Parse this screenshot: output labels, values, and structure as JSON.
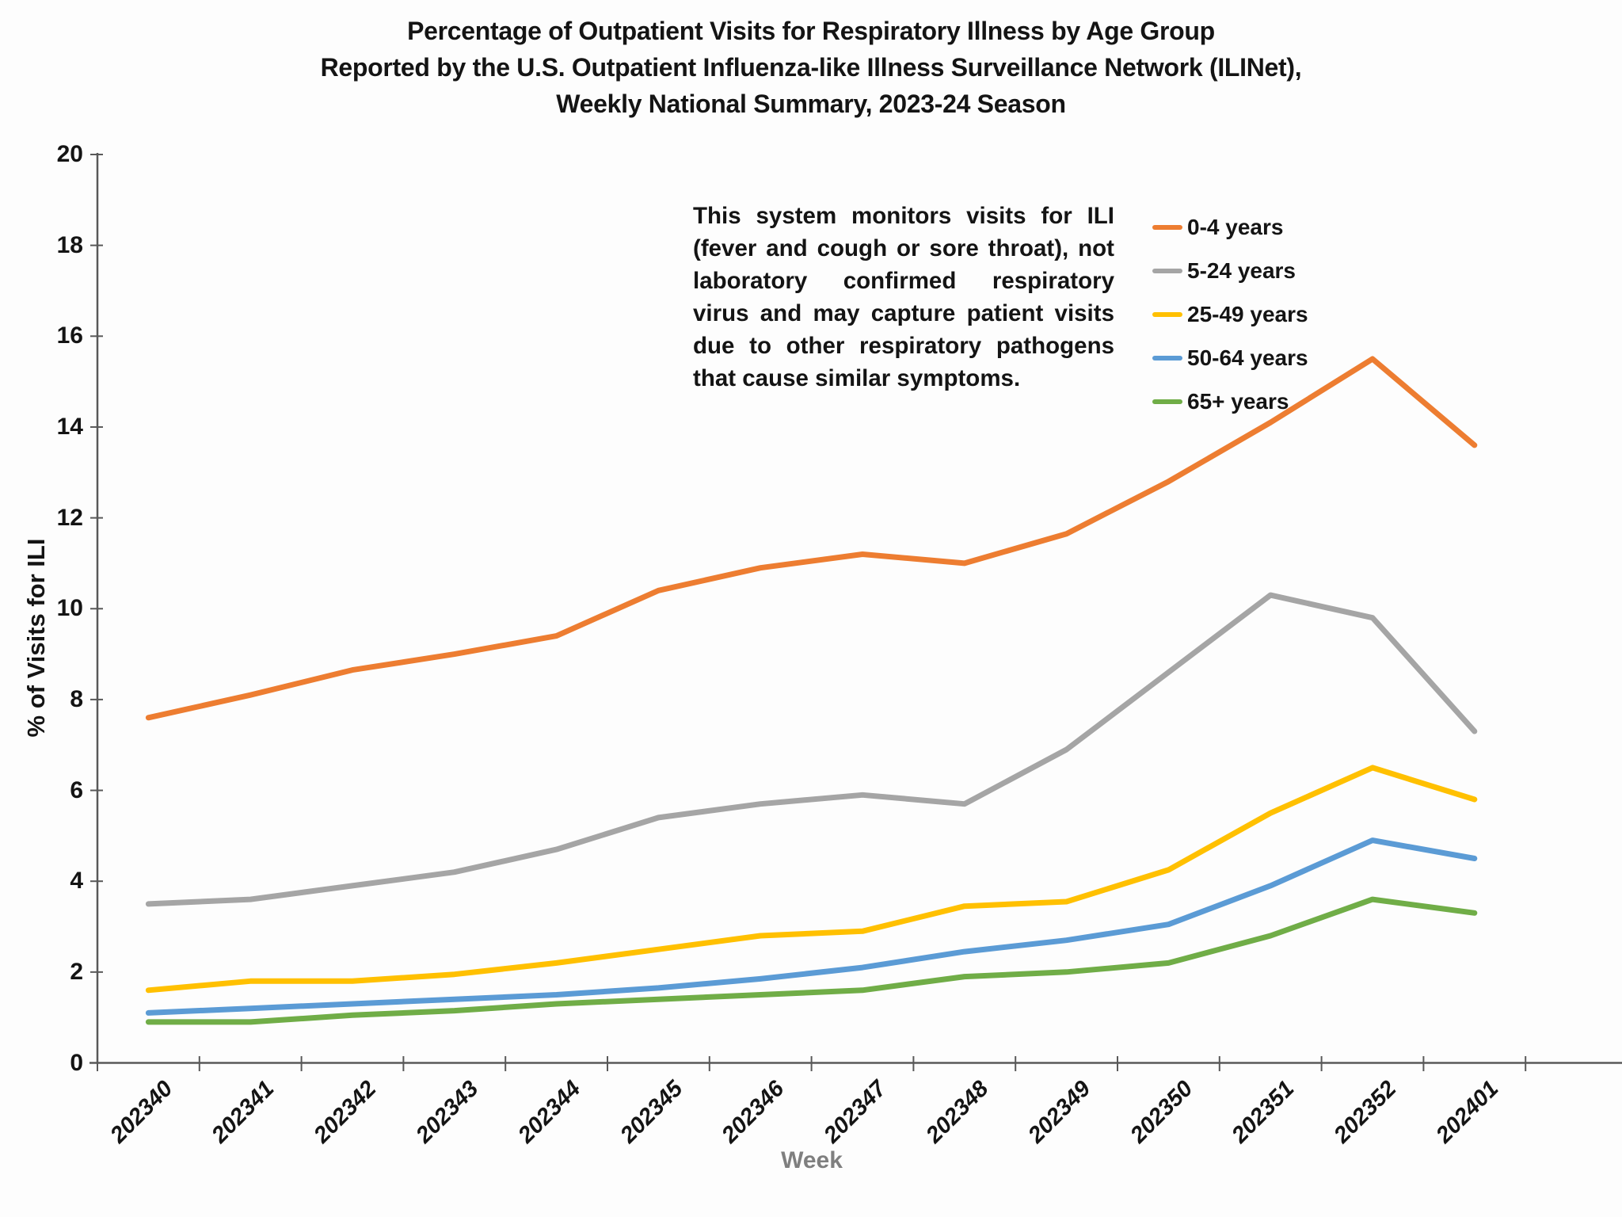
{
  "title": {
    "lines": [
      "Percentage of Outpatient Visits for Respiratory Illness by Age Group",
      "Reported by the U.S. Outpatient Influenza-like Illness Surveillance Network (ILINet),",
      "Weekly National Summary, 2023-24 Season"
    ]
  },
  "annotation": "This system monitors visits for ILI (fever and cough or sore throat), not laboratory confirmed respiratory virus and may capture patient visits due to other respiratory pathogens that cause similar symptoms.",
  "colors": {
    "axis": "#595959",
    "text": "#141414",
    "x_axis_title": "#7F7F7F",
    "background": "#FDFDFD"
  },
  "chart_data": {
    "type": "line",
    "title": "Percentage of Outpatient Visits for Respiratory Illness by Age Group Reported by the U.S. Outpatient Influenza-like Illness Surveillance Network (ILINet), Weekly National Summary, 2023-24 Season",
    "xlabel": "Week",
    "ylabel": "% of Visits for ILI",
    "ylim": [
      0,
      20
    ],
    "ytick_step": 2,
    "grid": false,
    "legend_position": "inside-top-right",
    "categories": [
      "202340",
      "202341",
      "202342",
      "202343",
      "202344",
      "202345",
      "202346",
      "202347",
      "202348",
      "202349",
      "202350",
      "202351",
      "202352",
      "202401"
    ],
    "series": [
      {
        "name": "0-4 years",
        "color": "#ED7D31",
        "values": [
          7.6,
          8.1,
          8.65,
          9.0,
          9.4,
          10.4,
          10.9,
          11.2,
          11.0,
          11.65,
          12.8,
          14.1,
          15.5,
          13.6
        ]
      },
      {
        "name": "5-24 years",
        "color": "#A5A5A5",
        "values": [
          3.5,
          3.6,
          3.9,
          4.2,
          4.7,
          5.4,
          5.7,
          5.9,
          5.7,
          6.9,
          8.6,
          10.3,
          9.8,
          7.3
        ]
      },
      {
        "name": "25-49 years",
        "color": "#FFC000",
        "values": [
          1.6,
          1.8,
          1.8,
          1.95,
          2.2,
          2.5,
          2.8,
          2.9,
          3.45,
          3.55,
          4.25,
          5.5,
          6.5,
          5.8
        ]
      },
      {
        "name": "50-64 years",
        "color": "#5B9BD5",
        "values": [
          1.1,
          1.2,
          1.3,
          1.4,
          1.5,
          1.65,
          1.85,
          2.1,
          2.45,
          2.7,
          3.05,
          3.9,
          4.9,
          4.5
        ]
      },
      {
        "name": "65+ years",
        "color": "#70AD47",
        "values": [
          0.9,
          0.9,
          1.05,
          1.15,
          1.3,
          1.4,
          1.5,
          1.6,
          1.9,
          2.0,
          2.2,
          2.8,
          3.6,
          3.3
        ]
      }
    ]
  }
}
